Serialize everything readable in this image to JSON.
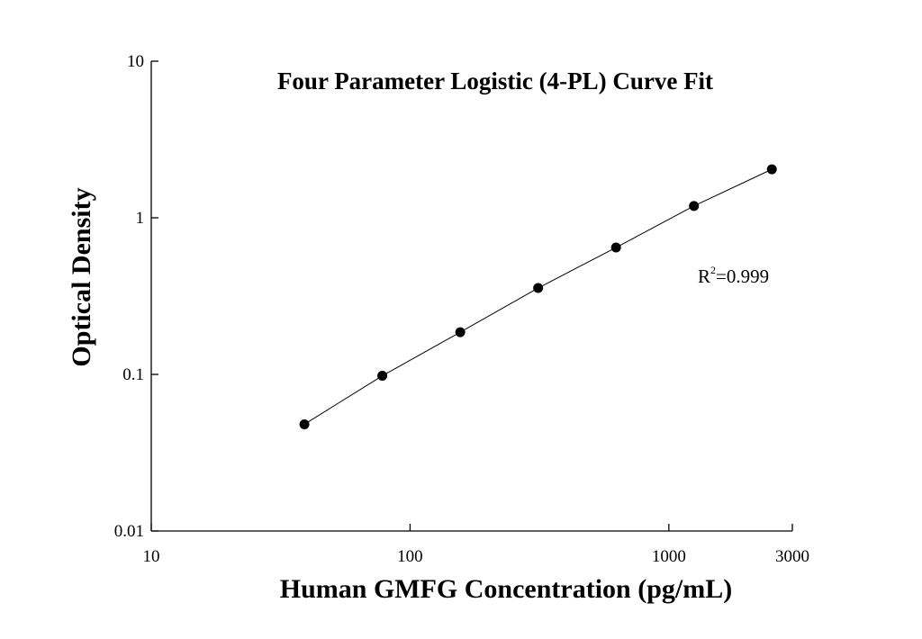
{
  "chart_data": {
    "type": "scatter",
    "title": "Four Parameter Logistic (4-PL) Curve Fit",
    "x_label": "Human GMFG Concentration (pg/mL)",
    "y_label": "Optical Density",
    "annotation": {
      "base": "R",
      "superscript": "2",
      "text": "=0.999"
    },
    "x": [
      39.06,
      78.125,
      156.25,
      312.5,
      625,
      1250,
      2500
    ],
    "series": [
      {
        "color": "#000000",
        "values": [
          0.048,
          0.098,
          0.186,
          0.356,
          0.646,
          1.19,
          2.04
        ]
      }
    ],
    "xlim": [
      10,
      3000
    ],
    "ylim": [
      0.01,
      10
    ],
    "xticks": [
      10,
      100,
      1000,
      3000
    ],
    "yticks": [
      0.01,
      0.1,
      1,
      10
    ],
    "xscale": "log",
    "yscale": "log",
    "fit_line": true
  }
}
